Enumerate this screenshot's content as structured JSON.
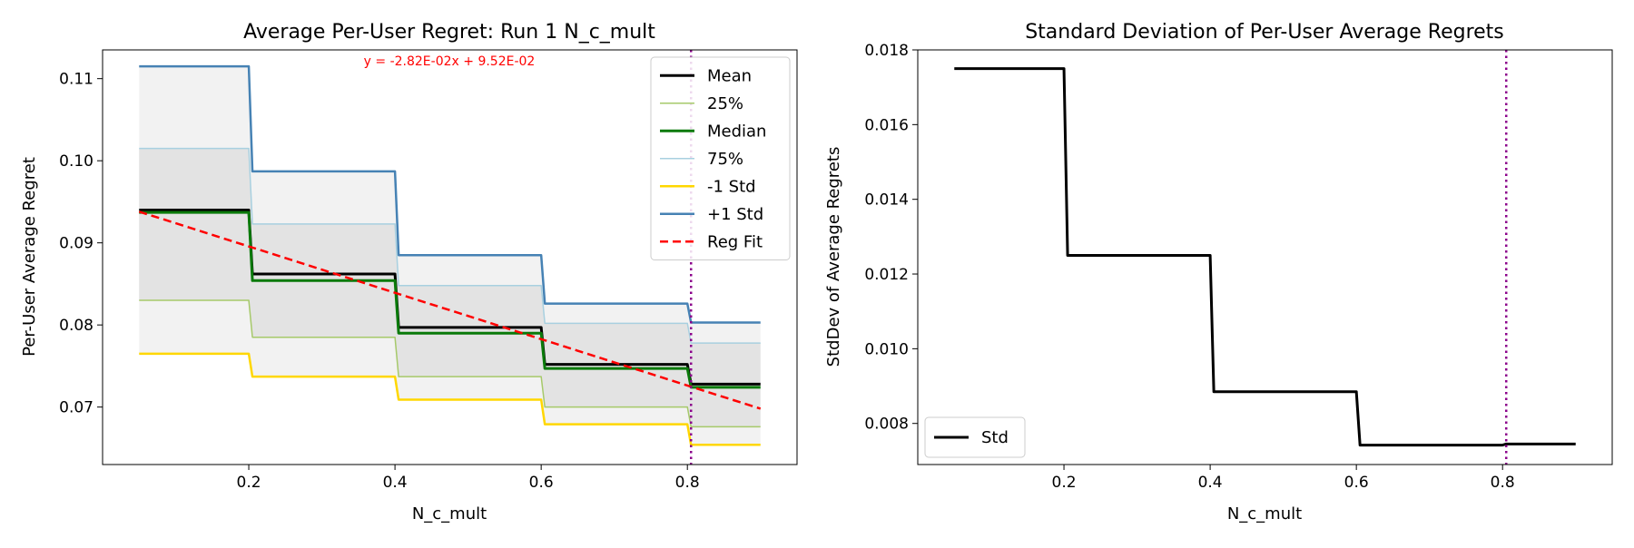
{
  "colors": {
    "mean": "#000000",
    "p25": "#a6c96a",
    "median": "#0a7a0a",
    "p75": "#a8d0e0",
    "minus_std": "#ffd700",
    "plus_std": "#4682b4",
    "reg_fit": "#ff0000",
    "vline": "#8b008b",
    "fill_outer": "#f2f2f2",
    "fill_inner": "#e3e3e3",
    "annotation": "#ff0000"
  },
  "chart_data": [
    {
      "type": "line",
      "title": "Average Per-User Regret: Run 1 N_c_mult",
      "xlabel": "N_c_mult",
      "ylabel": "Per-User Average Regret",
      "xlim": [
        0.0,
        0.95
      ],
      "ylim": [
        0.063,
        0.1135
      ],
      "xticks": [
        0.2,
        0.4,
        0.6,
        0.8
      ],
      "xtick_labels": [
        "0.2",
        "0.4",
        "0.6",
        "0.8"
      ],
      "yticks": [
        0.07,
        0.08,
        0.09,
        0.1,
        0.11
      ],
      "ytick_labels": [
        "0.07",
        "0.08",
        "0.09",
        "0.10",
        "0.11"
      ],
      "grid": false,
      "legend_position": "top-right",
      "annotation": "y = -2.82E-02x + 9.52E-02",
      "vline_x": 0.805,
      "fill_bands": [
        {
          "lower": "-1 Std",
          "upper": "+1 Std"
        },
        {
          "lower": "25%",
          "upper": "75%"
        }
      ],
      "series": [
        {
          "name": "Mean",
          "style": "solid",
          "x": [
            0.05,
            0.2,
            0.205,
            0.4,
            0.405,
            0.6,
            0.605,
            0.8,
            0.805,
            0.9
          ],
          "y": [
            0.094,
            0.094,
            0.0862,
            0.0862,
            0.0797,
            0.0797,
            0.0752,
            0.0752,
            0.0728,
            0.0728
          ]
        },
        {
          "name": "25%",
          "style": "solid",
          "x": [
            0.05,
            0.2,
            0.205,
            0.4,
            0.405,
            0.6,
            0.605,
            0.8,
            0.805,
            0.9
          ],
          "y": [
            0.083,
            0.083,
            0.0785,
            0.0785,
            0.0737,
            0.0737,
            0.07,
            0.07,
            0.0676,
            0.0676
          ]
        },
        {
          "name": "Median",
          "style": "solid",
          "x": [
            0.05,
            0.2,
            0.205,
            0.4,
            0.405,
            0.6,
            0.605,
            0.8,
            0.805,
            0.9
          ],
          "y": [
            0.0937,
            0.0937,
            0.0854,
            0.0854,
            0.079,
            0.079,
            0.0747,
            0.0747,
            0.0724,
            0.0724
          ]
        },
        {
          "name": "75%",
          "style": "solid",
          "x": [
            0.05,
            0.2,
            0.205,
            0.4,
            0.405,
            0.6,
            0.605,
            0.8,
            0.805,
            0.9
          ],
          "y": [
            0.1015,
            0.1015,
            0.0923,
            0.0923,
            0.0848,
            0.0848,
            0.0802,
            0.0802,
            0.0778,
            0.0778
          ]
        },
        {
          "name": "-1 Std",
          "style": "solid",
          "x": [
            0.05,
            0.2,
            0.205,
            0.4,
            0.405,
            0.6,
            0.605,
            0.8,
            0.805,
            0.9
          ],
          "y": [
            0.0765,
            0.0765,
            0.0737,
            0.0737,
            0.0709,
            0.0709,
            0.0679,
            0.0679,
            0.0654,
            0.0654
          ]
        },
        {
          "name": "+1 Std",
          "style": "solid",
          "x": [
            0.05,
            0.2,
            0.205,
            0.4,
            0.405,
            0.6,
            0.605,
            0.8,
            0.805,
            0.9
          ],
          "y": [
            0.1115,
            0.1115,
            0.0987,
            0.0987,
            0.0885,
            0.0885,
            0.0826,
            0.0826,
            0.0803,
            0.0803
          ]
        },
        {
          "name": "Reg Fit",
          "style": "dashed",
          "x": [
            0.05,
            0.9
          ],
          "y": [
            0.0938,
            0.0698
          ]
        }
      ]
    },
    {
      "type": "line",
      "title": "Standard Deviation of Per-User Average Regrets",
      "xlabel": "N_c_mult",
      "ylabel": "StdDev of Average Regrets",
      "xlim": [
        0.0,
        0.95
      ],
      "ylim": [
        0.0069,
        0.018
      ],
      "xticks": [
        0.2,
        0.4,
        0.6,
        0.8
      ],
      "xtick_labels": [
        "0.2",
        "0.4",
        "0.6",
        "0.8"
      ],
      "yticks": [
        0.008,
        0.01,
        0.012,
        0.014,
        0.016,
        0.018
      ],
      "ytick_labels": [
        "0.008",
        "0.010",
        "0.012",
        "0.014",
        "0.016",
        "0.018"
      ],
      "grid": false,
      "legend_position": "bottom-left",
      "vline_x": 0.805,
      "series": [
        {
          "name": "Std",
          "style": "solid",
          "x": [
            0.05,
            0.2,
            0.205,
            0.4,
            0.405,
            0.6,
            0.605,
            0.8,
            0.805,
            0.9
          ],
          "y": [
            0.0175,
            0.0175,
            0.0125,
            0.0125,
            0.00885,
            0.00885,
            0.00742,
            0.00742,
            0.00745,
            0.00745
          ]
        }
      ]
    }
  ]
}
